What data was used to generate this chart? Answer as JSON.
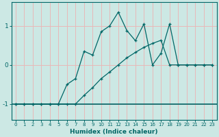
{
  "xlabel": "Humidex (Indice chaleur)",
  "bg_color": "#cce8e4",
  "grid_color": "#e8b8b8",
  "line_color": "#006666",
  "xlim": [
    -0.5,
    23.5
  ],
  "ylim": [
    -1.4,
    1.6
  ],
  "yticks": [
    -1,
    0,
    1
  ],
  "xticks": [
    0,
    1,
    2,
    3,
    4,
    5,
    6,
    7,
    8,
    9,
    10,
    11,
    12,
    13,
    14,
    15,
    16,
    17,
    18,
    19,
    20,
    21,
    22,
    23
  ],
  "line1_x": [
    0,
    1,
    2,
    3,
    4,
    5,
    6,
    7,
    8,
    9,
    10,
    11,
    12,
    13,
    14,
    15,
    16,
    17,
    18,
    19,
    20,
    21,
    22,
    23
  ],
  "line1_y": [
    -1,
    -1,
    -1,
    -1,
    -1,
    -1,
    -1,
    -1,
    -0.78,
    -0.58,
    -0.35,
    -0.18,
    0.0,
    0.18,
    0.32,
    0.45,
    0.55,
    0.63,
    0.0,
    0.0,
    0.0,
    0.0,
    0.0,
    0.0
  ],
  "line2_x": [
    0,
    1,
    2,
    3,
    4,
    5,
    6,
    7,
    8,
    9,
    10,
    11,
    12,
    13,
    14,
    15,
    16,
    17,
    18,
    19,
    20,
    21,
    22,
    23
  ],
  "line2_y": [
    -1,
    -1,
    -1,
    -1,
    -1,
    -1,
    -0.5,
    -0.35,
    0.35,
    0.25,
    0.85,
    1.0,
    1.35,
    0.88,
    0.62,
    1.05,
    0.0,
    0.3,
    1.05,
    0.0,
    0.0,
    0.0,
    0.0,
    0.0
  ]
}
